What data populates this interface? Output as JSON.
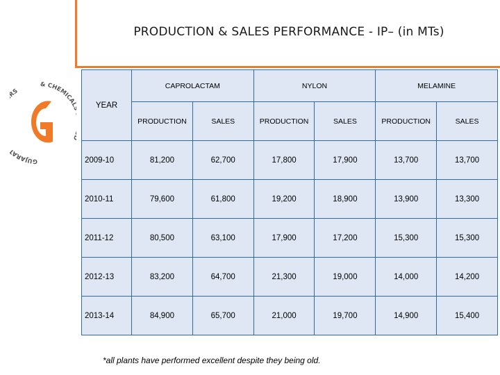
{
  "title": "PRODUCTION & SALES PERFORMANCE - IP– (in MTs)",
  "logo": {
    "letter": "G",
    "text": "GUJARAT STATE FERTILIZERS & CHEMICALS LIMITED",
    "color": "#f07a28"
  },
  "table": {
    "year_header": "YEAR",
    "groups": [
      "CAPROLACTAM",
      "NYLON",
      "MELAMINE"
    ],
    "sub_headers": [
      "PRODUCTION",
      "SALES",
      "PRODUCTION",
      "SALES",
      "PRODUCTION",
      "SALES"
    ],
    "rows": [
      {
        "year": "2009-10",
        "values": [
          "81,200",
          "62,700",
          "17,800",
          "17,900",
          "13,700",
          "13,700"
        ]
      },
      {
        "year": "2010-11",
        "values": [
          "79,600",
          "61,800",
          "19,200",
          "18,900",
          "13,900",
          "13,300"
        ]
      },
      {
        "year": "2011-12",
        "values": [
          "80,500",
          "63,100",
          "17,900",
          "17,200",
          "15,300",
          "15,300"
        ]
      },
      {
        "year": "2012-13",
        "values": [
          "83,200",
          "64,700",
          "21,300",
          "19,000",
          "14,000",
          "14,200"
        ]
      },
      {
        "year": "2013-14",
        "values": [
          "84,900",
          "65,700",
          "21,000",
          "19,700",
          "14,900",
          "15,400"
        ]
      }
    ]
  },
  "footnote": "*all plants have performed excellent despite they being old."
}
